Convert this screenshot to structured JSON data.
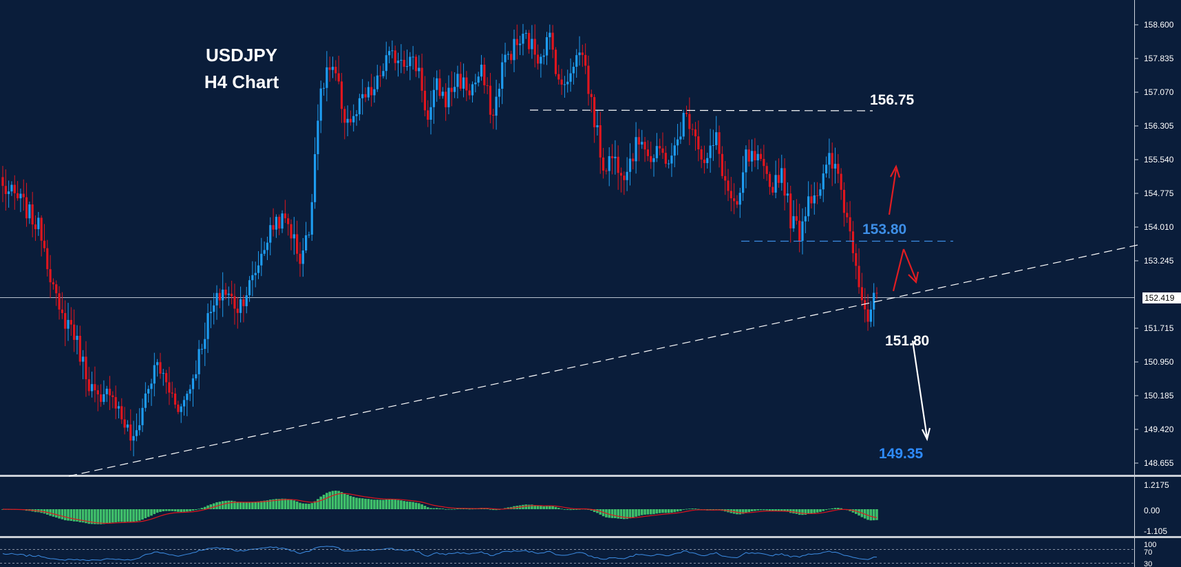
{
  "chart_data": {
    "type": "candlestick",
    "title": "USDJPY",
    "subtitle": "H4 Chart",
    "symbol": "USDJPY",
    "timeframe": "H4",
    "price_axis": {
      "ticks": [
        "158.600",
        "157.835",
        "157.070",
        "156.305",
        "155.540",
        "154.775",
        "154.010",
        "153.245",
        "152.419",
        "151.715",
        "150.950",
        "150.185",
        "149.420",
        "148.655"
      ],
      "current_price": "152.419",
      "range": [
        148.45,
        159.05
      ]
    },
    "levels": [
      {
        "label": "156.75",
        "price": 156.75,
        "style": "dashed",
        "color": "#ffffff"
      },
      {
        "label": "153.80",
        "price": 153.8,
        "style": "dashed",
        "color": "#3d8ee6"
      },
      {
        "label": "151.80",
        "price": 151.8,
        "style": "annotation",
        "color": "#ffffff"
      },
      {
        "label": "149.35",
        "price": 149.35,
        "style": "annotation",
        "color": "#2e8bff"
      }
    ],
    "trendline": {
      "from": {
        "bar": 0,
        "price": 148.55
      },
      "to": {
        "bar": "end",
        "price": 153.55
      }
    },
    "anchors": [
      [
        0,
        154.9
      ],
      [
        6,
        154.6
      ],
      [
        13,
        153.9
      ],
      [
        19,
        152.0
      ],
      [
        23,
        151.8
      ],
      [
        29,
        150.5
      ],
      [
        33,
        149.9
      ],
      [
        36,
        150.4
      ],
      [
        40,
        149.7
      ],
      [
        44,
        149.1
      ],
      [
        48,
        150.2
      ],
      [
        52,
        150.9
      ],
      [
        56,
        150.3
      ],
      [
        60,
        149.9
      ],
      [
        64,
        150.6
      ],
      [
        69,
        151.9
      ],
      [
        74,
        152.6
      ],
      [
        79,
        152.2
      ],
      [
        84,
        152.8
      ],
      [
        88,
        153.6
      ],
      [
        92,
        154.2
      ],
      [
        96,
        154.1
      ],
      [
        100,
        153.3
      ],
      [
        103,
        153.9
      ],
      [
        106,
        156.6
      ],
      [
        109,
        157.6
      ],
      [
        112,
        157.4
      ],
      [
        115,
        156.5
      ],
      [
        118,
        156.4
      ],
      [
        121,
        156.9
      ],
      [
        125,
        157.1
      ],
      [
        129,
        157.8
      ],
      [
        133,
        157.9
      ],
      [
        137,
        157.8
      ],
      [
        140,
        157.6
      ],
      [
        143,
        156.4
      ],
      [
        146,
        157.2
      ],
      [
        149,
        156.9
      ],
      [
        153,
        157.4
      ],
      [
        157,
        157.1
      ],
      [
        161,
        157.5
      ],
      [
        165,
        156.5
      ],
      [
        168,
        157.7
      ],
      [
        172,
        158.1
      ],
      [
        176,
        158.3
      ],
      [
        180,
        157.9
      ],
      [
        184,
        158.3
      ],
      [
        188,
        157.1
      ],
      [
        192,
        157.8
      ],
      [
        195,
        158.0
      ],
      [
        198,
        156.8
      ],
      [
        202,
        155.4
      ],
      [
        205,
        155.6
      ],
      [
        209,
        155.3
      ],
      [
        212,
        155.7
      ],
      [
        215,
        156.1
      ],
      [
        218,
        155.5
      ],
      [
        221,
        155.7
      ],
      [
        225,
        155.5
      ],
      [
        229,
        156.5
      ],
      [
        232,
        156.4
      ],
      [
        236,
        155.4
      ],
      [
        240,
        156.0
      ],
      [
        243,
        155.0
      ],
      [
        247,
        154.3
      ],
      [
        250,
        155.6
      ],
      [
        254,
        155.5
      ],
      [
        258,
        154.9
      ],
      [
        262,
        155.3
      ],
      [
        265,
        154.2
      ],
      [
        268,
        153.9
      ],
      [
        271,
        154.7
      ],
      [
        275,
        154.9
      ],
      [
        278,
        155.5
      ],
      [
        281,
        155.2
      ],
      [
        283,
        154.5
      ],
      [
        286,
        153.6
      ],
      [
        289,
        152.5
      ],
      [
        291,
        151.95
      ],
      [
        293,
        152.3
      ],
      [
        294,
        152.5
      ]
    ]
  }
}
